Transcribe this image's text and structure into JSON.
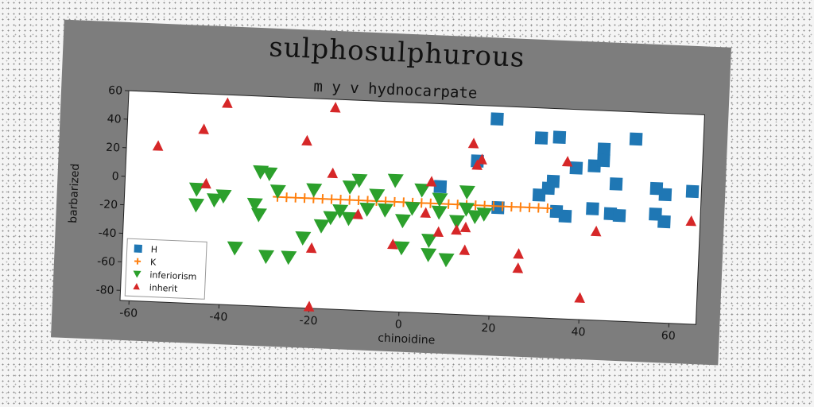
{
  "chart_data": {
    "type": "scatter",
    "title": "sulphosulphurous",
    "subtitle": "m y v hydnocarpate",
    "xlabel": "chinoidine",
    "ylabel": "barbarized",
    "xlim": [
      -62,
      66
    ],
    "ylim": [
      -87,
      60
    ],
    "xticks": [
      -60,
      -40,
      -20,
      0,
      20,
      40,
      60
    ],
    "yticks": [
      60,
      40,
      20,
      0,
      -20,
      -40,
      -60,
      -80
    ],
    "grid": false,
    "legend_position": "lower-left",
    "series": [
      {
        "name": "H",
        "marker": "square",
        "color": "#1f77b4",
        "points": [
          [
            20,
            51
          ],
          [
            16,
            21
          ],
          [
            30,
            39
          ],
          [
            34,
            40
          ],
          [
            38,
            19
          ],
          [
            42,
            21
          ],
          [
            44,
            33
          ],
          [
            44,
            25
          ],
          [
            51,
            41
          ],
          [
            46,
            -12
          ],
          [
            48,
            -13
          ],
          [
            47,
            9
          ],
          [
            33,
            9
          ],
          [
            32,
            4
          ],
          [
            30,
            -1
          ],
          [
            34,
            -12
          ],
          [
            36,
            -15
          ],
          [
            42,
            -9
          ],
          [
            56,
            7
          ],
          [
            58,
            3
          ],
          [
            56,
            -11
          ],
          [
            58,
            -16
          ],
          [
            64,
            6
          ],
          [
            8,
            2
          ],
          [
            21,
            -11
          ]
        ]
      },
      {
        "name": "K",
        "marker": "plus",
        "color": "#ff7f0e",
        "points": [
          [
            -28,
            -10
          ],
          [
            -26,
            -10
          ],
          [
            -24,
            -10
          ],
          [
            -22,
            -10
          ],
          [
            -20,
            -10
          ],
          [
            -18,
            -10
          ],
          [
            -16,
            -10
          ],
          [
            -14,
            -10
          ],
          [
            -12,
            -10
          ],
          [
            -10,
            -10
          ],
          [
            -8,
            -10
          ],
          [
            -6,
            -10
          ],
          [
            -4,
            -10
          ],
          [
            -2,
            -10
          ],
          [
            0,
            -10
          ],
          [
            2,
            -10
          ],
          [
            4,
            -10
          ],
          [
            6,
            -10
          ],
          [
            8,
            -10
          ],
          [
            10,
            -10
          ],
          [
            12,
            -10
          ],
          [
            14,
            -10
          ],
          [
            16,
            -10
          ],
          [
            18,
            -10
          ],
          [
            20,
            -10
          ],
          [
            22,
            -10
          ],
          [
            24,
            -10
          ],
          [
            26,
            -10
          ],
          [
            28,
            -10
          ],
          [
            30,
            -10
          ],
          [
            32,
            -10
          ]
        ]
      },
      {
        "name": "inferiorism",
        "marker": "triangle-down",
        "color": "#2ca02c",
        "points": [
          [
            -46,
            -7
          ],
          [
            -46,
            -18
          ],
          [
            -42,
            -14
          ],
          [
            -40,
            -11
          ],
          [
            -37,
            -47
          ],
          [
            -33,
            -16
          ],
          [
            -32,
            7
          ],
          [
            -30,
            6
          ],
          [
            -32,
            -23
          ],
          [
            -30,
            -52
          ],
          [
            -28,
            -6
          ],
          [
            -25,
            -52
          ],
          [
            -22,
            -38
          ],
          [
            -20,
            -4
          ],
          [
            -18,
            -29
          ],
          [
            -16,
            -23
          ],
          [
            -14,
            -18
          ],
          [
            -12,
            -1
          ],
          [
            -12,
            -23
          ],
          [
            -10,
            4
          ],
          [
            -8,
            -16
          ],
          [
            -6,
            -6
          ],
          [
            -4,
            -16
          ],
          [
            -2,
            5
          ],
          [
            0,
            -23
          ],
          [
            0,
            -42
          ],
          [
            2,
            -14
          ],
          [
            4,
            -1
          ],
          [
            6,
            -36
          ],
          [
            8,
            -7
          ],
          [
            6,
            -46
          ],
          [
            8,
            -16
          ],
          [
            10,
            -49
          ],
          [
            12,
            -22
          ],
          [
            14,
            -1
          ],
          [
            14,
            -13
          ],
          [
            16,
            -18
          ],
          [
            18,
            -16
          ]
        ]
      },
      {
        "name": "inherit",
        "marker": "triangle-up",
        "color": "#d62728",
        "points": [
          [
            -55,
            22
          ],
          [
            -45,
            35
          ],
          [
            -44,
            -3
          ],
          [
            -40,
            54
          ],
          [
            -22,
            30
          ],
          [
            -16,
            54
          ],
          [
            -16,
            8
          ],
          [
            -20,
            -45
          ],
          [
            -20,
            -86
          ],
          [
            -10,
            -20
          ],
          [
            -2,
            -40
          ],
          [
            5,
            -17
          ],
          [
            6,
            5
          ],
          [
            8,
            -30
          ],
          [
            14,
            -42
          ],
          [
            12,
            -28
          ],
          [
            14,
            -26
          ],
          [
            15,
            33
          ],
          [
            16,
            18
          ],
          [
            17,
            22
          ],
          [
            26,
            -43
          ],
          [
            26,
            -53
          ],
          [
            36,
            23
          ],
          [
            40,
            -72
          ],
          [
            43,
            -25
          ],
          [
            64,
            -15
          ]
        ]
      }
    ]
  }
}
